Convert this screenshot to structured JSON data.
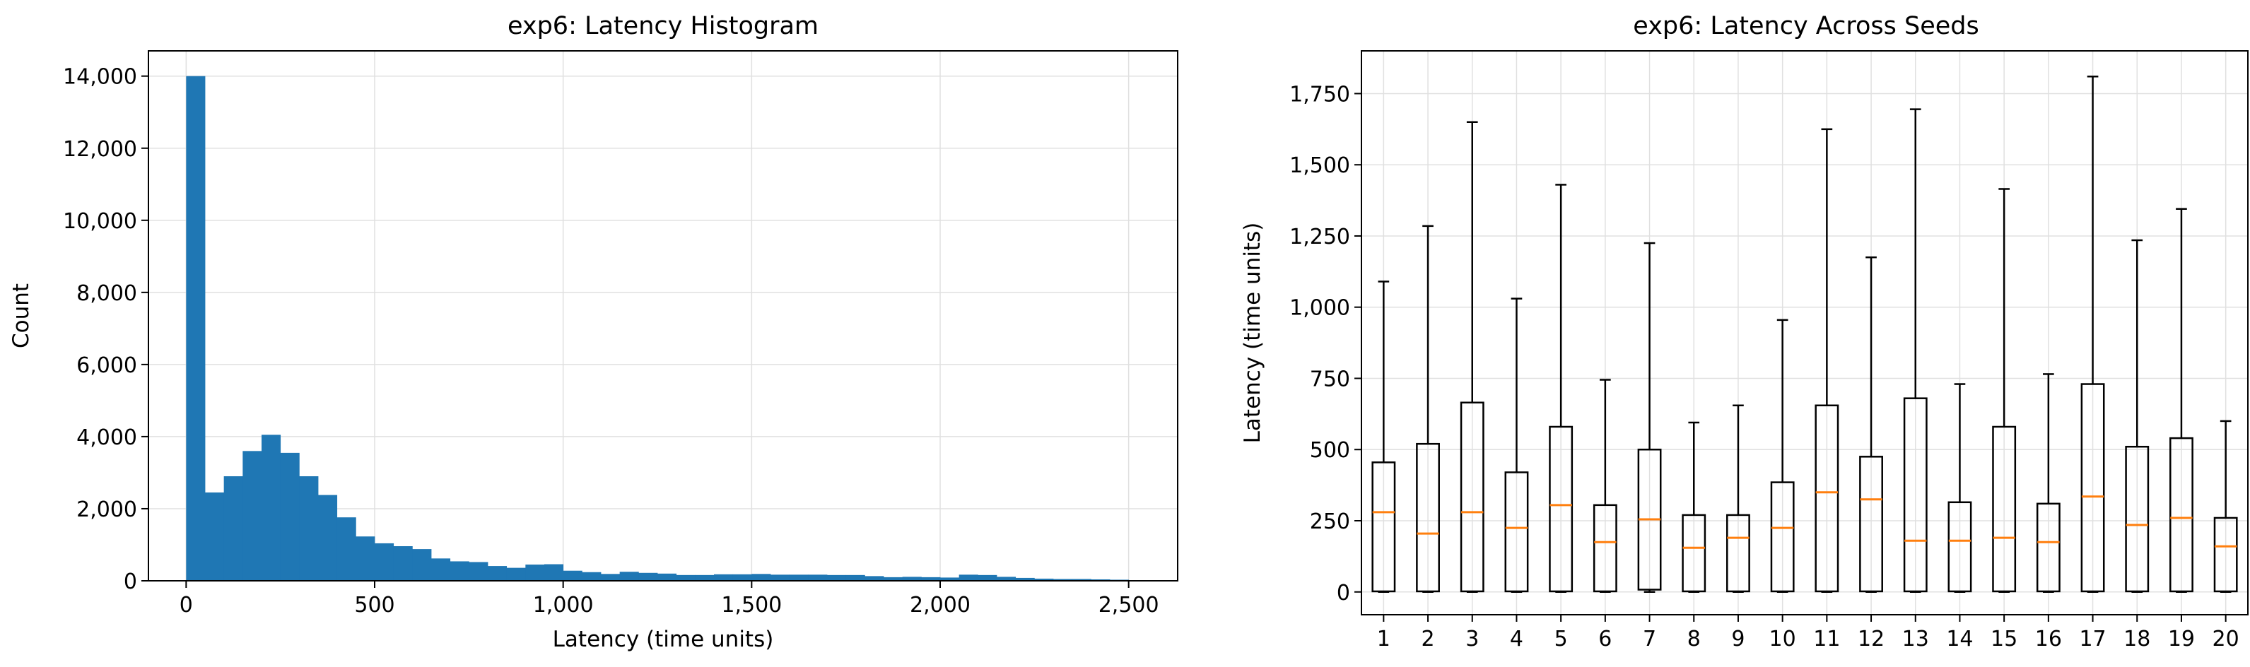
{
  "chart_data": [
    {
      "type": "bar",
      "title": "exp6: Latency Histogram",
      "xlabel": "Latency (time units)",
      "ylabel": "Count",
      "xlim": [
        -100,
        2630
      ],
      "ylim": [
        0,
        14700
      ],
      "xticks": [
        0,
        500,
        1000,
        1500,
        2000,
        2500
      ],
      "xtick_labels": [
        "0",
        "500",
        "1,000",
        "1,500",
        "2,000",
        "2,500"
      ],
      "yticks": [
        0,
        2000,
        4000,
        6000,
        8000,
        10000,
        12000,
        14000
      ],
      "ytick_labels": [
        "0",
        "2,000",
        "4,000",
        "6,000",
        "8,000",
        "10,000",
        "12,000",
        "14,000"
      ],
      "grid": true,
      "bar_color": "#1f77b4",
      "bin_start": 0,
      "bin_width": 50,
      "values": [
        14000,
        2450,
        2900,
        3600,
        4050,
        3550,
        2900,
        2380,
        1760,
        1230,
        1040,
        960,
        880,
        620,
        540,
        520,
        410,
        360,
        450,
        460,
        280,
        240,
        190,
        250,
        220,
        200,
        160,
        160,
        180,
        180,
        190,
        170,
        170,
        170,
        160,
        160,
        130,
        100,
        110,
        100,
        90,
        170,
        160,
        110,
        80,
        60,
        50,
        50,
        40,
        30
      ]
    },
    {
      "type": "box",
      "title": "exp6: Latency Across Seeds",
      "xlabel": "",
      "ylabel": "Latency (time units)",
      "ylim": [
        -80,
        1900
      ],
      "yticks": [
        0,
        250,
        500,
        750,
        1000,
        1250,
        1500,
        1750
      ],
      "ytick_labels": [
        "0",
        "250",
        "500",
        "750",
        "1,000",
        "1,250",
        "1,500",
        "1,750"
      ],
      "grid": true,
      "median_color": "#ff7f0e",
      "categories": [
        "1",
        "2",
        "3",
        "4",
        "5",
        "6",
        "7",
        "8",
        "9",
        "10",
        "11",
        "12",
        "13",
        "14",
        "15",
        "16",
        "17",
        "18",
        "19",
        "20"
      ],
      "boxes": [
        {
          "whislo": 0,
          "q1": 2,
          "med": 280,
          "q3": 455,
          "whishi": 1090
        },
        {
          "whislo": 0,
          "q1": 2,
          "med": 205,
          "q3": 520,
          "whishi": 1285
        },
        {
          "whislo": 0,
          "q1": 2,
          "med": 280,
          "q3": 665,
          "whishi": 1650
        },
        {
          "whislo": 0,
          "q1": 2,
          "med": 225,
          "q3": 420,
          "whishi": 1030
        },
        {
          "whislo": 0,
          "q1": 2,
          "med": 305,
          "q3": 580,
          "whishi": 1430
        },
        {
          "whislo": 0,
          "q1": 2,
          "med": 175,
          "q3": 305,
          "whishi": 745
        },
        {
          "whislo": 0,
          "q1": 8,
          "med": 255,
          "q3": 500,
          "whishi": 1225
        },
        {
          "whislo": 0,
          "q1": 2,
          "med": 155,
          "q3": 270,
          "whishi": 595
        },
        {
          "whislo": 0,
          "q1": 2,
          "med": 190,
          "q3": 270,
          "whishi": 655
        },
        {
          "whislo": 0,
          "q1": 2,
          "med": 225,
          "q3": 385,
          "whishi": 955
        },
        {
          "whislo": 0,
          "q1": 2,
          "med": 350,
          "q3": 655,
          "whishi": 1625
        },
        {
          "whislo": 0,
          "q1": 2,
          "med": 325,
          "q3": 475,
          "whishi": 1175
        },
        {
          "whislo": 0,
          "q1": 2,
          "med": 180,
          "q3": 680,
          "whishi": 1695
        },
        {
          "whislo": 0,
          "q1": 2,
          "med": 180,
          "q3": 315,
          "whishi": 730
        },
        {
          "whislo": 0,
          "q1": 2,
          "med": 190,
          "q3": 580,
          "whishi": 1415
        },
        {
          "whislo": 0,
          "q1": 2,
          "med": 175,
          "q3": 310,
          "whishi": 765
        },
        {
          "whislo": 0,
          "q1": 2,
          "med": 335,
          "q3": 730,
          "whishi": 1810
        },
        {
          "whislo": 0,
          "q1": 2,
          "med": 235,
          "q3": 510,
          "whishi": 1235
        },
        {
          "whislo": 0,
          "q1": 2,
          "med": 260,
          "q3": 540,
          "whishi": 1345
        },
        {
          "whislo": 0,
          "q1": 2,
          "med": 160,
          "q3": 260,
          "whishi": 600
        }
      ]
    }
  ]
}
